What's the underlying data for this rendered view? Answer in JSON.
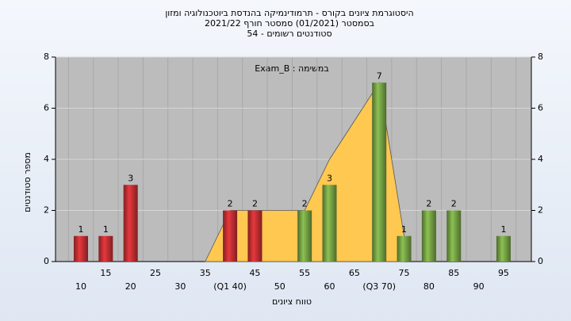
{
  "chart_data": {
    "type": "bar",
    "title": "היסטוגרמת ציונים בקורס - תרמודינמיקה בהנדסת ביוטכנולוגיה ומזון",
    "subtitle": "בסמסטר (01/2021) סמסטר חורף 2021/22",
    "subtitle2": "סטודנטים רשומים - 54",
    "annotation": "במשימה : Exam_B",
    "ylabel": "מספר סטודנטים",
    "xlabel": "טווח ציונים",
    "categories": [
      "10",
      "15",
      "20",
      "25",
      "30",
      "35",
      "(Q1 40)",
      "45",
      "50",
      "55",
      "60",
      "65",
      "(Q3 70)",
      "75",
      "80",
      "85",
      "90",
      "95"
    ],
    "values": [
      1,
      1,
      3,
      0,
      0,
      0,
      2,
      2,
      0,
      2,
      3,
      0,
      7,
      1,
      2,
      2,
      0,
      1
    ],
    "colors": [
      "#e8383d",
      "#e8383d",
      "#e8383d",
      "#e8383d",
      "#e8383d",
      "#e8383d",
      "#e8383d",
      "#e8383d",
      "#8cc152",
      "#8cc152",
      "#8cc152",
      "#8cc152",
      "#8cc152",
      "#8cc152",
      "#8cc152",
      "#8cc152",
      "#8cc152",
      "#8cc152"
    ],
    "area_values": [
      null,
      null,
      null,
      null,
      null,
      0,
      2,
      2,
      2,
      2,
      4,
      5.5,
      7,
      1,
      null,
      null,
      null,
      null
    ],
    "area_color": "#ffc851",
    "ylim": [
      0,
      8
    ],
    "yticks": [
      0,
      2,
      4,
      6,
      8
    ],
    "y2lim": [
      0,
      8
    ],
    "y2ticks": [
      0,
      2,
      4,
      6,
      8
    ],
    "grid": true
  }
}
